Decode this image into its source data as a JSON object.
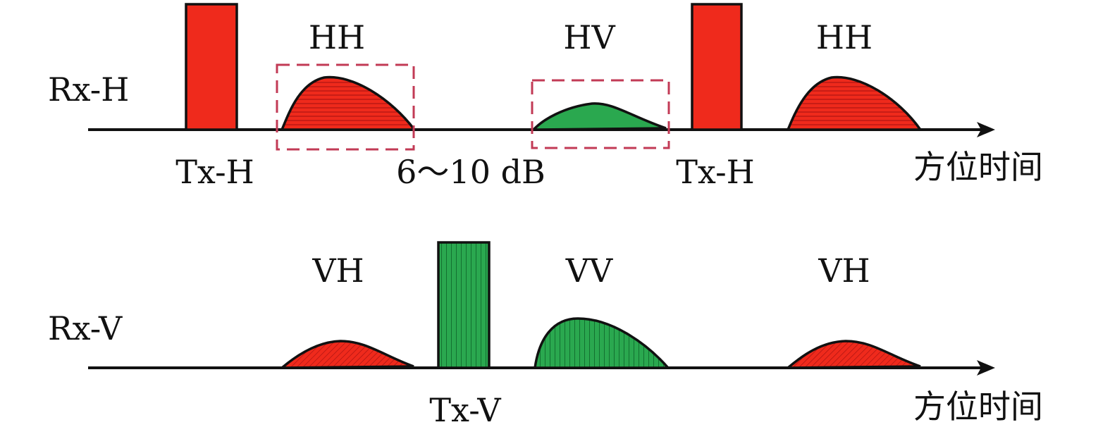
{
  "colors": {
    "red": "#ef2a1c",
    "green": "#2aa84f",
    "axis": "#111111",
    "box": "#c23a55"
  },
  "rows": [
    {
      "id": "rx-h",
      "label": "Rx-H",
      "axis_label": "方位时间",
      "echo_labels": [
        "HH",
        "HV",
        "HH"
      ],
      "tx_labels": [
        "Tx-H",
        "Tx-H"
      ],
      "attenuation_label": "6～10 dB"
    },
    {
      "id": "rx-v",
      "label": "Rx-V",
      "axis_label": "方位时间",
      "echo_labels": [
        "VH",
        "VV",
        "VH"
      ],
      "tx_labels": [
        "Tx-V"
      ]
    }
  ]
}
